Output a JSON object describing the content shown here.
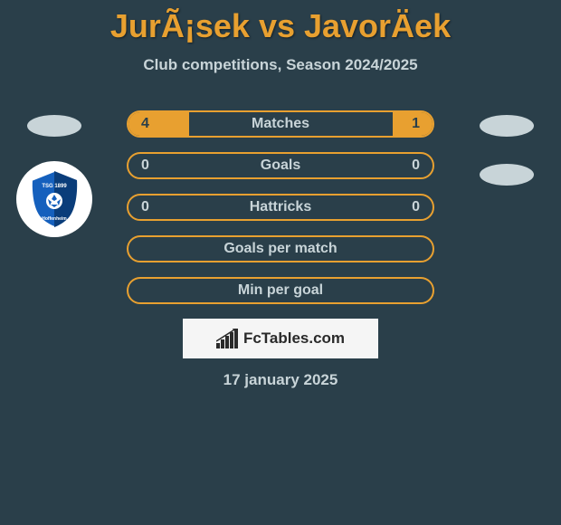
{
  "title": "JurÃ¡sek vs JavorÄek",
  "subtitle": "Club competitions, Season 2024/2025",
  "colors": {
    "background": "#2a3f4a",
    "accent": "#e8a030",
    "text_light": "#c8d4d8",
    "logo_bg": "#c8d4d8",
    "brand_bg": "#f5f5f5"
  },
  "stats": [
    {
      "label": "Matches",
      "left_value": "4",
      "right_value": "1",
      "left_fill_pct": 20,
      "right_fill_pct": 13,
      "left_on_fill": true,
      "right_on_fill": true
    },
    {
      "label": "Goals",
      "left_value": "0",
      "right_value": "0",
      "left_fill_pct": 0,
      "right_fill_pct": 0,
      "left_on_fill": false,
      "right_on_fill": false
    },
    {
      "label": "Hattricks",
      "left_value": "0",
      "right_value": "0",
      "left_fill_pct": 0,
      "right_fill_pct": 0,
      "left_on_fill": false,
      "right_on_fill": false
    },
    {
      "label": "Goals per match",
      "left_value": "",
      "right_value": "",
      "left_fill_pct": 0,
      "right_fill_pct": 0,
      "left_on_fill": false,
      "right_on_fill": false
    },
    {
      "label": "Min per goal",
      "left_value": "",
      "right_value": "",
      "left_fill_pct": 0,
      "right_fill_pct": 0,
      "left_on_fill": false,
      "right_on_fill": false
    }
  ],
  "brand": "FcTables.com",
  "date": "17 january 2025",
  "club_badge": {
    "text_top": "TSG 1899",
    "text_bottom": "Hoffenheim"
  }
}
